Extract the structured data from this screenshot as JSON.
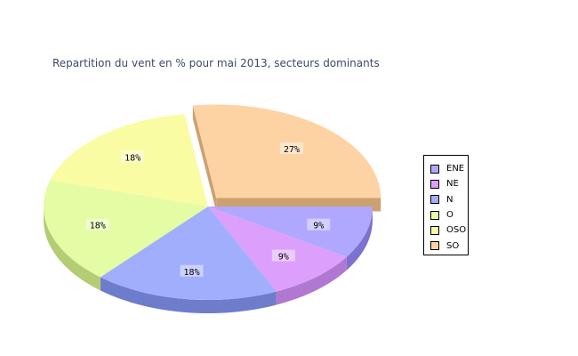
{
  "chart_data": {
    "type": "pie",
    "title": "Repartition du vent en % pour mai 2013, secteurs dominants",
    "categories": [
      "ENE",
      "NE",
      "N",
      "O",
      "OSO",
      "SO"
    ],
    "values": [
      9,
      9,
      18,
      18,
      18,
      27
    ],
    "labels": [
      "9%",
      "9%",
      "18%",
      "18%",
      "18%",
      "27%"
    ],
    "colors": [
      "#b0a8fe",
      "#dca0fc",
      "#a0aefc",
      "#e4fca4",
      "#fafca4",
      "#fdd3a3"
    ],
    "side_colors": [
      "#7e72d0",
      "#b078d0",
      "#6e7ccc",
      "#b4cc74",
      "#c8ca78",
      "#cca070"
    ],
    "exploded": [
      "SO"
    ],
    "legend_position": "right"
  }
}
